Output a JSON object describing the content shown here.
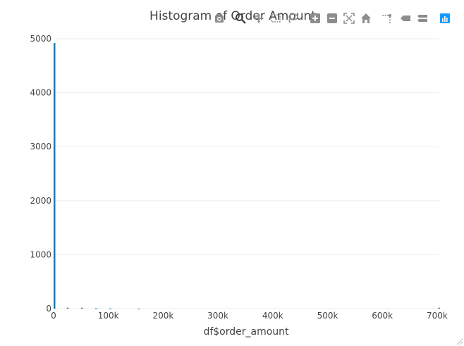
{
  "colors": {
    "bar": "#1f77b4",
    "grid": "#eeeeee",
    "tick_text": "#444444",
    "title_text": "#444444",
    "modebar_icon": "#8c8c8c",
    "modebar_active": "#444444",
    "plotly_logo": "#119dff"
  },
  "modebar": {
    "buttons": [
      {
        "name": "download-plot-icon",
        "tooltip": "Download plot as a png"
      },
      {
        "name": "zoom-icon",
        "tooltip": "Zoom"
      },
      {
        "name": "pan-icon",
        "tooltip": "Pan"
      },
      {
        "name": "box-select-icon",
        "tooltip": "Box Select"
      },
      {
        "name": "lasso-select-icon",
        "tooltip": "Lasso Select"
      },
      {
        "name": "zoom-in-icon",
        "tooltip": "Zoom in"
      },
      {
        "name": "zoom-out-icon",
        "tooltip": "Zoom out"
      },
      {
        "name": "autoscale-icon",
        "tooltip": "Autoscale"
      },
      {
        "name": "reset-axes-icon",
        "tooltip": "Reset axes"
      },
      {
        "name": "spike-lines-icon",
        "tooltip": "Toggle Spike Lines"
      },
      {
        "name": "hover-closest-icon",
        "tooltip": "Show closest data on hover"
      },
      {
        "name": "hover-compare-icon",
        "tooltip": "Compare data on hover"
      },
      {
        "name": "plotly-logo-icon",
        "tooltip": "Produced with Plotly"
      }
    ]
  },
  "chart_data": {
    "type": "bar",
    "title": "Histogram of Order Amount",
    "xlabel": "df$order_amount",
    "ylabel": "",
    "xlim": [
      0,
      704000
    ],
    "ylim": [
      0,
      5000
    ],
    "grid": true,
    "bin_width": 2000,
    "xticks": [
      0,
      100000,
      200000,
      300000,
      400000,
      500000,
      600000,
      700000
    ],
    "xtick_labels": [
      "0",
      "100k",
      "200k",
      "300k",
      "400k",
      "500k",
      "600k",
      "700k"
    ],
    "yticks": [
      0,
      1000,
      2000,
      3000,
      4000,
      5000
    ],
    "ytick_labels": [
      "0",
      "1000",
      "2000",
      "3000",
      "4000",
      "5000"
    ],
    "bins": [
      {
        "x0": 0,
        "x1": 2000,
        "count": 4920
      },
      {
        "x0": 24000,
        "x1": 26000,
        "count": 18
      },
      {
        "x0": 50000,
        "x1": 52000,
        "count": 16
      },
      {
        "x0": 76000,
        "x1": 78000,
        "count": 9
      },
      {
        "x0": 102000,
        "x1": 104000,
        "count": 4
      },
      {
        "x0": 154000,
        "x1": 156000,
        "count": 3
      },
      {
        "x0": 702000,
        "x1": 704000,
        "count": 17
      }
    ]
  }
}
